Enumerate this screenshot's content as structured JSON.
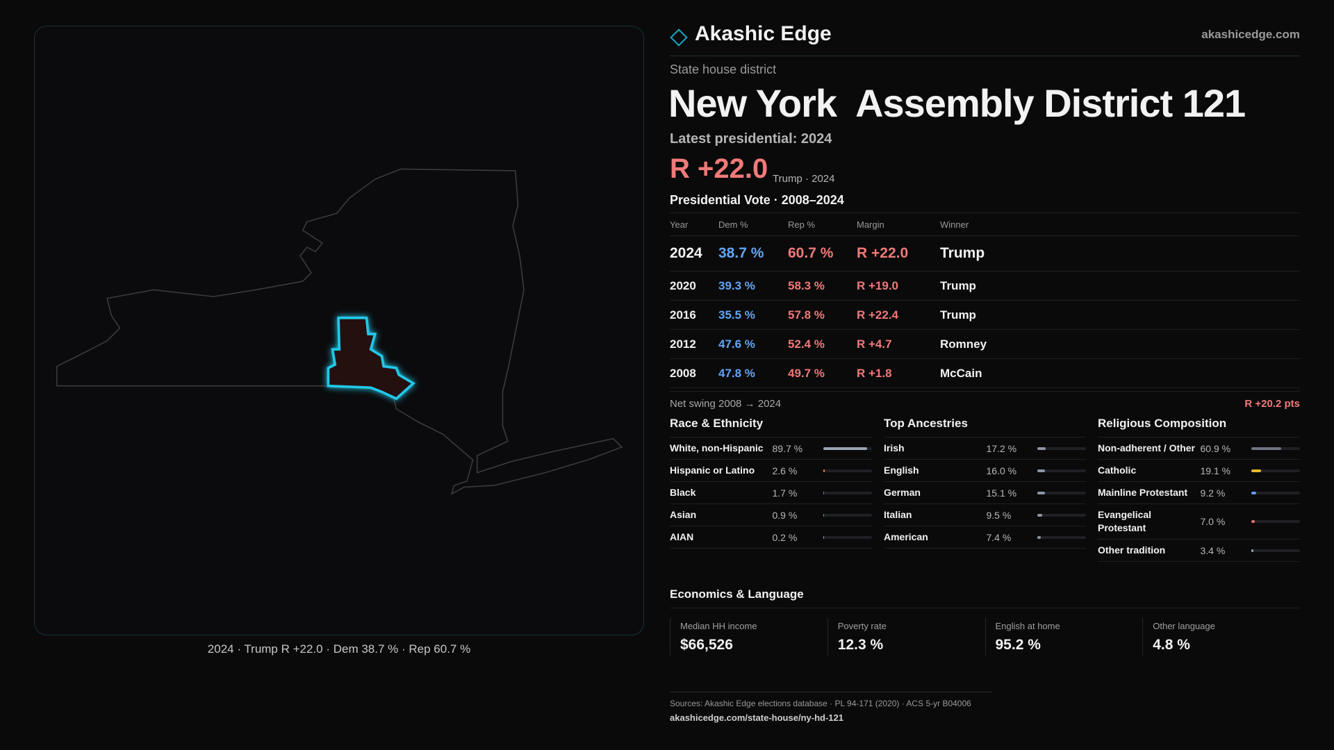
{
  "brand": {
    "name": "Akashic Edge",
    "site": "akashicedge.com"
  },
  "header": {
    "kicker": "State house district",
    "title": "New York  Assembly District 121",
    "latest": "Latest presidential: 2024",
    "margin": "R +22.0",
    "margin_note": "Trump · 2024"
  },
  "votes": {
    "title": "Presidential Vote · 2008–2024",
    "columns": [
      "Year",
      "Dem %",
      "Rep %",
      "Margin",
      "Winner"
    ],
    "rows": [
      [
        "2024",
        "38.7 %",
        "60.7 %",
        "R +22.0",
        "Trump"
      ],
      [
        "2020",
        "39.3 %",
        "58.3 %",
        "R +19.0",
        "Trump"
      ],
      [
        "2016",
        "35.5 %",
        "57.8 %",
        "R +22.4",
        "Trump"
      ],
      [
        "2012",
        "47.6 %",
        "52.4 %",
        "R +4.7",
        "Romney"
      ],
      [
        "2008",
        "47.8 %",
        "49.7 %",
        "R +1.8",
        "McCain"
      ]
    ]
  },
  "swing": {
    "label": "Net swing 2008 → 2024",
    "value": "R +20.2 pts"
  },
  "demographics": [
    {
      "title": "Race & Ethnicity",
      "rows": [
        {
          "label": "White, non-Hispanic",
          "value": 89.7,
          "value_label": "89.7 %",
          "color": "#9aa3b3"
        },
        {
          "label": "Hispanic or Latino",
          "value": 2.6,
          "value_label": "2.6 %",
          "color": "#e8843c"
        },
        {
          "label": "Black",
          "value": 1.7,
          "value_label": "1.7 %",
          "color": "#5b8fd8"
        },
        {
          "label": "Asian",
          "value": 0.9,
          "value_label": "0.9 %",
          "color": "#4fb88a"
        },
        {
          "label": "AIAN",
          "value": 0.2,
          "value_label": "0.2 %",
          "color": "#b48ad8"
        }
      ]
    },
    {
      "title": "Top Ancestries",
      "rows": [
        {
          "label": "Irish",
          "value": 17.2,
          "value_label": "17.2 %",
          "color": "#8d96a6"
        },
        {
          "label": "English",
          "value": 16.0,
          "value_label": "16.0 %",
          "color": "#8d96a6"
        },
        {
          "label": "German",
          "value": 15.1,
          "value_label": "15.1 %",
          "color": "#8d96a6"
        },
        {
          "label": "Italian",
          "value": 9.5,
          "value_label": "9.5 %",
          "color": "#8d96a6"
        },
        {
          "label": "American",
          "value": 7.4,
          "value_label": "7.4 %",
          "color": "#8d96a6"
        }
      ]
    },
    {
      "title": "Religious Composition",
      "rows": [
        {
          "label": "Non-adherent / Other",
          "value": 60.9,
          "value_label": "60.9 %",
          "color": "#6d7382"
        },
        {
          "label": "Catholic",
          "value": 19.1,
          "value_label": "19.1 %",
          "color": "#e8b92c"
        },
        {
          "label": "Mainline Protestant",
          "value": 9.2,
          "value_label": "9.2 %",
          "color": "#5b9cf0"
        },
        {
          "label": "Evangelical Protestant",
          "value": 7.0,
          "value_label": "7.0 %",
          "color": "#ea6c6c"
        },
        {
          "label": "Other tradition",
          "value": 3.4,
          "value_label": "3.4 %",
          "color": "#9aa3b3"
        }
      ]
    }
  ],
  "economics": {
    "title": "Economics & Language",
    "items": [
      {
        "label": "Median HH income",
        "value": "$66,526"
      },
      {
        "label": "Poverty rate",
        "value": "12.3 %"
      },
      {
        "label": "English at home",
        "value": "95.2 %"
      },
      {
        "label": "Other language",
        "value": "4.8 %"
      }
    ]
  },
  "map_caption": "2024 · Trump R +22.0 · Dem 38.7 % · Rep 60.7 %",
  "footer": {
    "sources": "Sources: Akashic Edge elections database · PL 94-171 (2020) · ACS 5-yr B04006",
    "url": "akashicedge.com/state-house/ny-hd-121"
  }
}
